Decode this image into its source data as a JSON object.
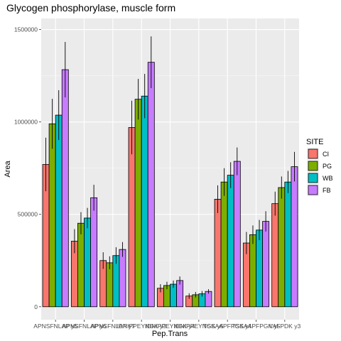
{
  "chart_data": {
    "type": "bar",
    "title": "Glycogen phosphorylase, muscle form",
    "xlabel": "Pep.Trans",
    "ylabel": "Area",
    "ylim": [
      -70000,
      1560000
    ],
    "yticks": [
      0,
      500000,
      1000000,
      1500000
    ],
    "ytick_labels": [
      "0",
      "500000",
      "1000000",
      "1500000"
    ],
    "grid": true,
    "legend_position": "right",
    "legend_title": "SITE",
    "categories": [
      "APNSFNLAP y5",
      "APNSFNLAP y6",
      "APNSFNLAP y7",
      "IDNIPPEYNGK y3",
      "IDNIPPEYNGK y4",
      "IDNIPPEYNGK y5",
      "TSSAAPFPGK y4",
      "TSSAAPFPGK y5",
      "VAFPDK y3"
    ],
    "series": [
      {
        "name": "CI",
        "color": "#F8766D",
        "values": [
          770000,
          355000,
          250000,
          970000,
          100000,
          58000,
          582000,
          345000,
          558000
        ],
        "errors": [
          145000,
          65000,
          45000,
          145000,
          22000,
          15000,
          75000,
          60000,
          65000
        ]
      },
      {
        "name": "PG",
        "color": "#7CAE00",
        "values": [
          990000,
          452000,
          238000,
          1123000,
          115000,
          65000,
          675000,
          390000,
          645000
        ],
        "errors": [
          135000,
          60000,
          35000,
          110000,
          20000,
          15000,
          75000,
          50000,
          60000
        ]
      },
      {
        "name": "WB",
        "color": "#00BFC4",
        "values": [
          1037000,
          480000,
          277000,
          1140000,
          122000,
          70000,
          712000,
          415000,
          675000
        ],
        "errors": [
          135000,
          55000,
          45000,
          120000,
          20000,
          15000,
          70000,
          55000,
          60000
        ]
      },
      {
        "name": "FB",
        "color": "#C77CFF",
        "values": [
          1283000,
          590000,
          310000,
          1323000,
          142000,
          83000,
          787000,
          462000,
          758000
        ],
        "errors": [
          150000,
          70000,
          40000,
          140000,
          22000,
          12000,
          75000,
          55000,
          80000
        ]
      }
    ]
  }
}
